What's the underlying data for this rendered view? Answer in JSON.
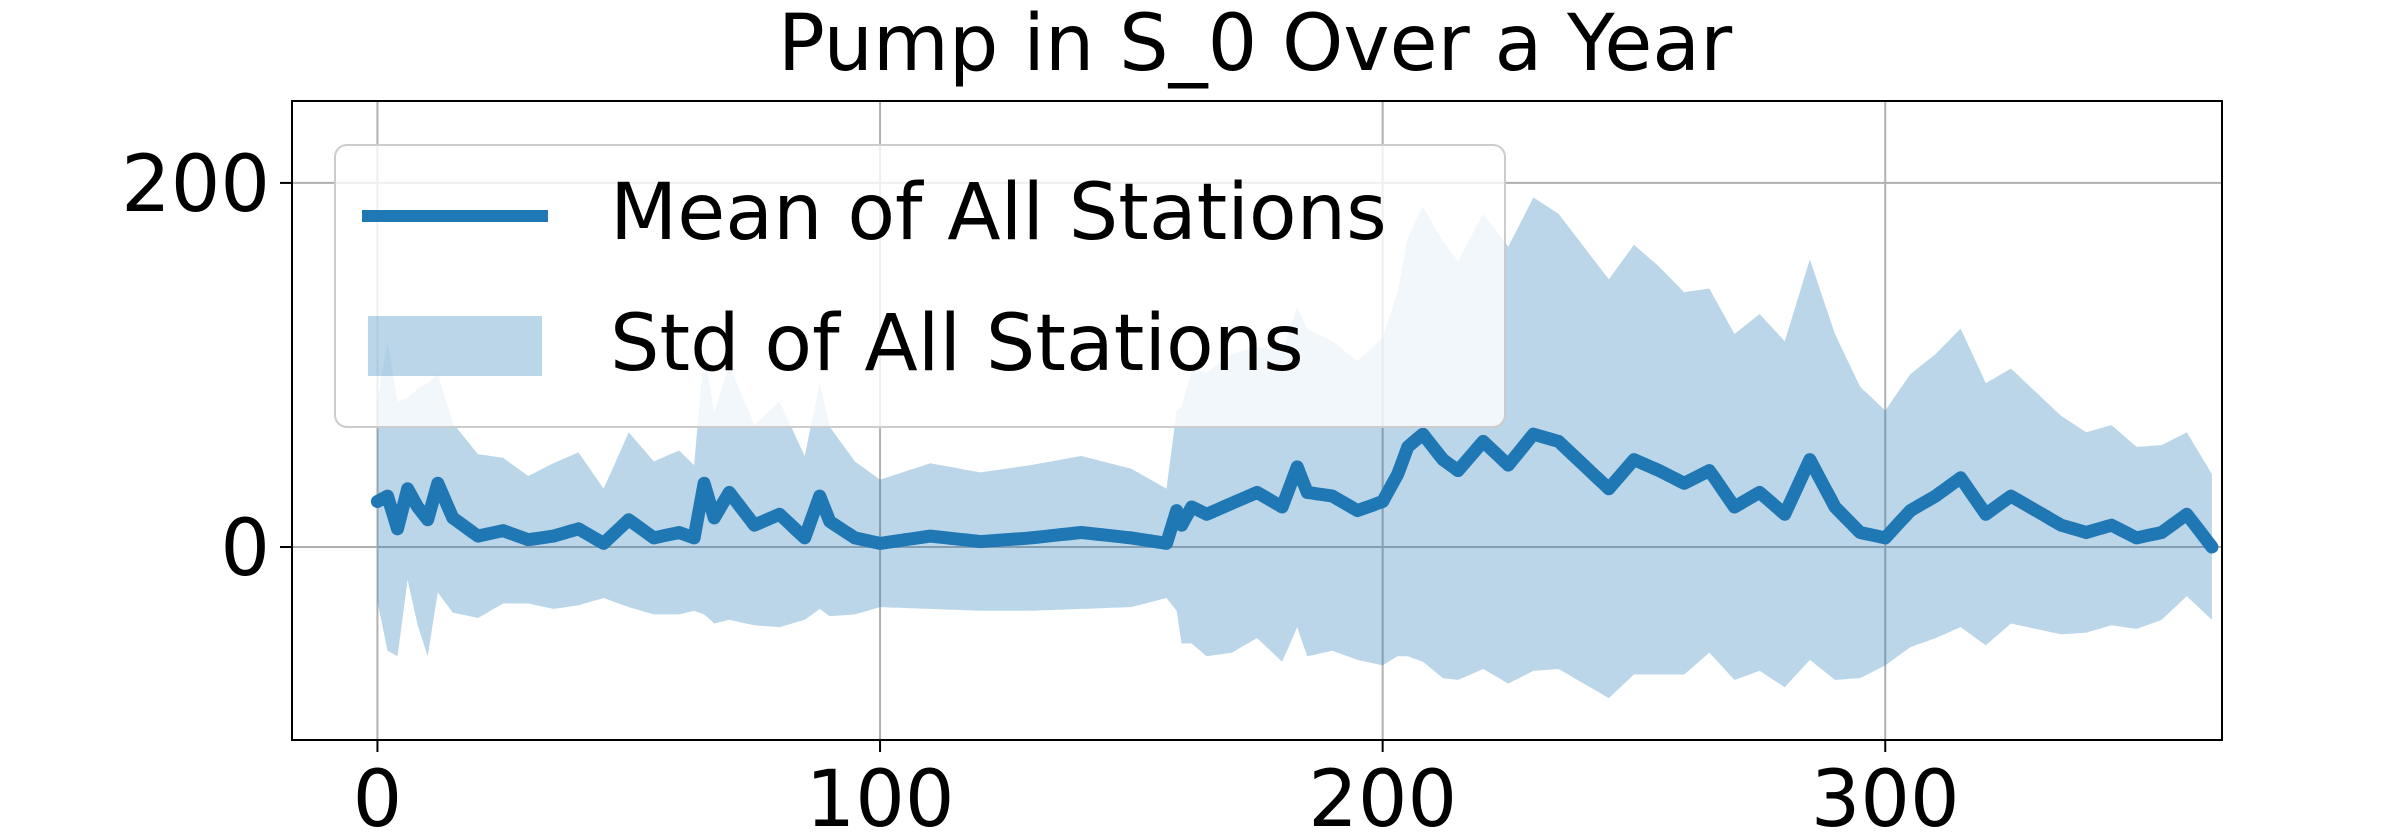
{
  "chart_data": {
    "type": "line",
    "title": "Pump in S_0 Over a Year",
    "xlabel": "",
    "ylabel": "",
    "xlim": [
      -17,
      367
    ],
    "ylim": [
      -106,
      245
    ],
    "x_ticks": [
      0,
      100,
      200,
      300
    ],
    "y_ticks": [
      0,
      200
    ],
    "grid": true,
    "legend_position": "upper-left",
    "colors": {
      "line": "#1f77b4",
      "band": "#1f77b4"
    },
    "legend": {
      "mean_label": "Mean of All Stations",
      "std_label": "Std of All Stations"
    },
    "x_anchors": [
      0,
      2,
      4,
      6,
      8,
      10,
      12,
      15,
      20,
      25,
      30,
      35,
      40,
      45,
      50,
      55,
      60,
      63,
      65,
      67,
      70,
      75,
      80,
      85,
      88,
      90,
      95,
      100,
      110,
      120,
      130,
      140,
      150,
      157,
      159,
      160,
      162,
      165,
      170,
      175,
      180,
      183,
      185,
      190,
      195,
      200,
      203,
      205,
      208,
      212,
      215,
      220,
      225,
      230,
      235,
      240,
      245,
      250,
      255,
      260,
      265,
      270,
      275,
      280,
      285,
      290,
      295,
      300,
      305,
      310,
      315,
      320,
      325,
      330,
      335,
      340,
      345,
      350,
      355,
      360,
      365
    ],
    "mean_anchors": [
      25,
      28,
      10,
      32,
      22,
      15,
      35,
      16,
      6,
      9,
      4,
      6,
      10,
      2,
      15,
      5,
      8,
      5,
      35,
      16,
      30,
      12,
      18,
      5,
      28,
      14,
      5,
      2,
      6,
      3,
      5,
      8,
      5,
      2,
      20,
      12,
      22,
      18,
      24,
      30,
      22,
      44,
      30,
      28,
      20,
      25,
      40,
      55,
      62,
      48,
      42,
      58,
      45,
      62,
      58,
      45,
      32,
      48,
      42,
      35,
      42,
      22,
      30,
      18,
      48,
      22,
      8,
      5,
      20,
      28,
      38,
      18,
      28,
      20,
      12,
      8,
      12,
      5,
      8,
      18,
      0
    ],
    "std_anchors": [
      55,
      85,
      70,
      50,
      65,
      75,
      60,
      52,
      45,
      40,
      35,
      40,
      42,
      30,
      48,
      42,
      45,
      40,
      72,
      58,
      70,
      55,
      62,
      45,
      62,
      52,
      42,
      35,
      40,
      38,
      40,
      42,
      38,
      30,
      55,
      65,
      75,
      78,
      82,
      80,
      85,
      88,
      90,
      85,
      82,
      90,
      100,
      115,
      125,
      120,
      115,
      125,
      120,
      130,
      125,
      120,
      115,
      118,
      112,
      105,
      100,
      95,
      98,
      95,
      110,
      95,
      80,
      70,
      75,
      78,
      82,
      72,
      70,
      65,
      60,
      55,
      55,
      50,
      48,
      45,
      40
    ]
  }
}
